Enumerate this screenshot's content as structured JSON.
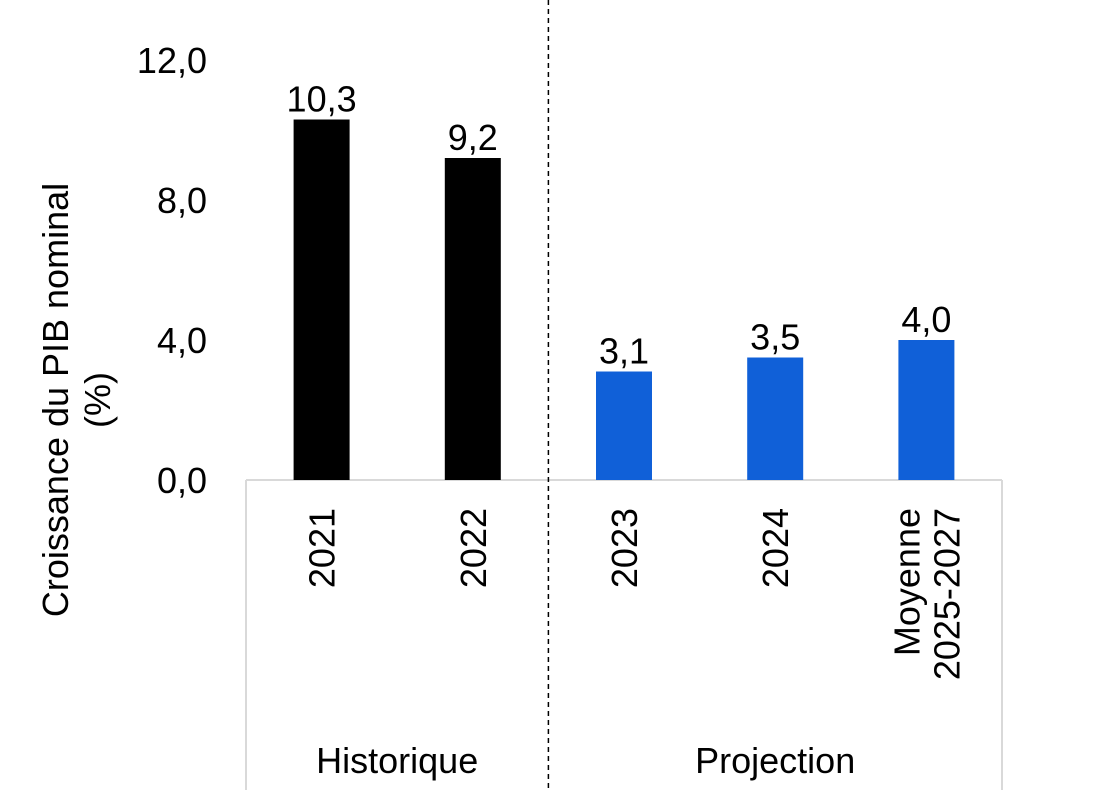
{
  "chart_data": {
    "type": "bar",
    "categories": [
      "2021",
      "2022",
      "2023",
      "2024",
      "Moyenne 2025-2027"
    ],
    "category_lines": [
      [
        "2021"
      ],
      [
        "2022"
      ],
      [
        "2023"
      ],
      [
        "2024"
      ],
      [
        "Moyenne",
        "2025-2027"
      ]
    ],
    "values": [
      10.3,
      9.2,
      3.1,
      3.5,
      4.0
    ],
    "value_labels": [
      "10,3",
      "9,2",
      "3,1",
      "3,5",
      "4,0"
    ],
    "groups": [
      {
        "label": "Historique",
        "categories": [
          "2021",
          "2022"
        ]
      },
      {
        "label": "Projection",
        "categories": [
          "2023",
          "2024",
          "Moyenne 2025-2027"
        ]
      }
    ],
    "bar_colors": [
      "#000000",
      "#000000",
      "#1060D8",
      "#1060D8",
      "#1060D8"
    ],
    "ylabel_lines": [
      "Croissance du PIB nominal",
      "(%)"
    ],
    "ylim": [
      0,
      12
    ],
    "yticks": [
      0,
      4,
      8,
      12
    ],
    "ytick_labels": [
      "0,0",
      "4,0",
      "8,0",
      "12,0"
    ],
    "grid": false,
    "separator": "dashed line between Historique and Projection",
    "colors": {
      "historique": "#000000",
      "projection": "#1060D8",
      "axis": "#d9d9d9",
      "separator": "#000000"
    }
  }
}
